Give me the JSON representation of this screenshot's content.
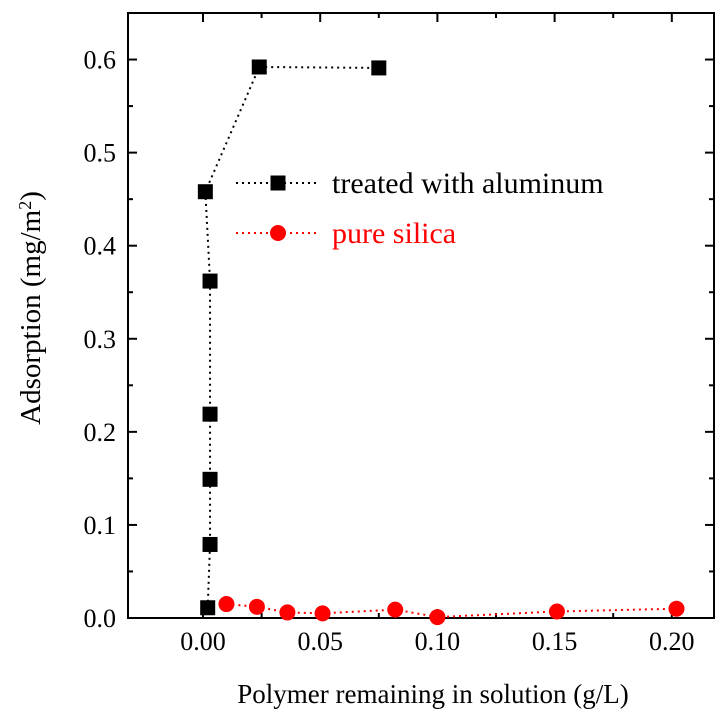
{
  "chart_data": {
    "type": "scatter",
    "title": "",
    "xlabel": "Polymer remaining in solution (g/L)",
    "ylabel_main": "Adsorption (mg/m",
    "ylabel_sup": "2",
    "ylabel_close": ")",
    "xlim": [
      -0.032,
      0.218
    ],
    "ylim": [
      0.0,
      0.65
    ],
    "xticks": [
      0.0,
      0.05,
      0.1,
      0.15,
      0.2
    ],
    "xtick_labels": [
      "0.00",
      "0.05",
      "0.10",
      "0.15",
      "0.20"
    ],
    "yticks": [
      0.0,
      0.1,
      0.2,
      0.3,
      0.4,
      0.5,
      0.6
    ],
    "ytick_labels": [
      "0.0",
      "0.1",
      "0.2",
      "0.3",
      "0.4",
      "0.5",
      "0.6"
    ],
    "grid": false,
    "legend_position": "upper-right",
    "series": [
      {
        "name": "treated with aluminum",
        "color": "#000000",
        "marker": "square",
        "x": [
          0.002,
          0.003,
          0.003,
          0.003,
          0.003,
          0.001,
          0.024,
          0.075
        ],
        "y": [
          0.011,
          0.079,
          0.149,
          0.219,
          0.362,
          0.458,
          0.592,
          0.591
        ]
      },
      {
        "name": "pure silica",
        "color": "#ff0000",
        "marker": "circle",
        "x": [
          0.01,
          0.023,
          0.036,
          0.051,
          0.082,
          0.1,
          0.151,
          0.202
        ],
        "y": [
          0.015,
          0.012,
          0.006,
          0.005,
          0.009,
          0.001,
          0.007,
          0.01
        ]
      }
    ]
  }
}
